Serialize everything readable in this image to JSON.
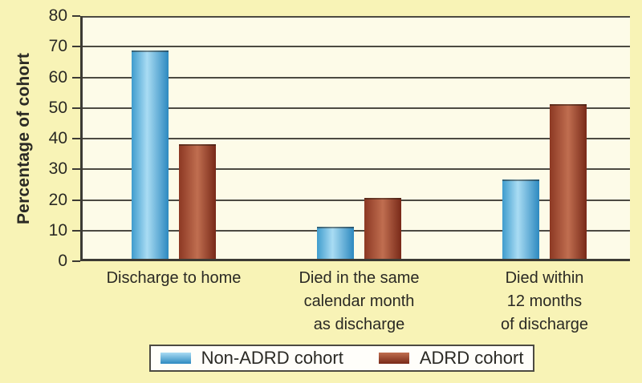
{
  "figure": {
    "ylabel": "Percentage of cohort"
  },
  "colors": {
    "background": "#f8f3b6",
    "plot_background": "#fdfbe8",
    "grid": "#4c4a42",
    "axis": "#3c3a34",
    "text": "#2a2924",
    "legend_background": "#fffefa",
    "legend_border": "#4c4a42"
  },
  "chart_data": {
    "type": "bar",
    "title": "",
    "xlabel": "",
    "ylabel": "Percentage of cohort",
    "ylim": [
      0,
      80
    ],
    "yticks": [
      0,
      10,
      20,
      30,
      40,
      50,
      60,
      70,
      80
    ],
    "grid": true,
    "legend_position": "bottom",
    "categories": [
      "Discharge to home",
      "Died in the same\ncalendar month\nas discharge",
      "Died within\n12 months\nof discharge"
    ],
    "series": [
      {
        "name": "Non-ADRD cohort",
        "values": [
          68,
          10.5,
          26
        ],
        "gradient": [
          "#3f9ccd",
          "#a9dcf3",
          "#2d89c0"
        ],
        "gradient_mid": "42%"
      },
      {
        "name": "ADRD cohort",
        "values": [
          37.5,
          19.8,
          50.5
        ],
        "gradient": [
          "#8c3823",
          "#c06e50",
          "#782918"
        ],
        "gradient_mid": "50%"
      }
    ]
  }
}
